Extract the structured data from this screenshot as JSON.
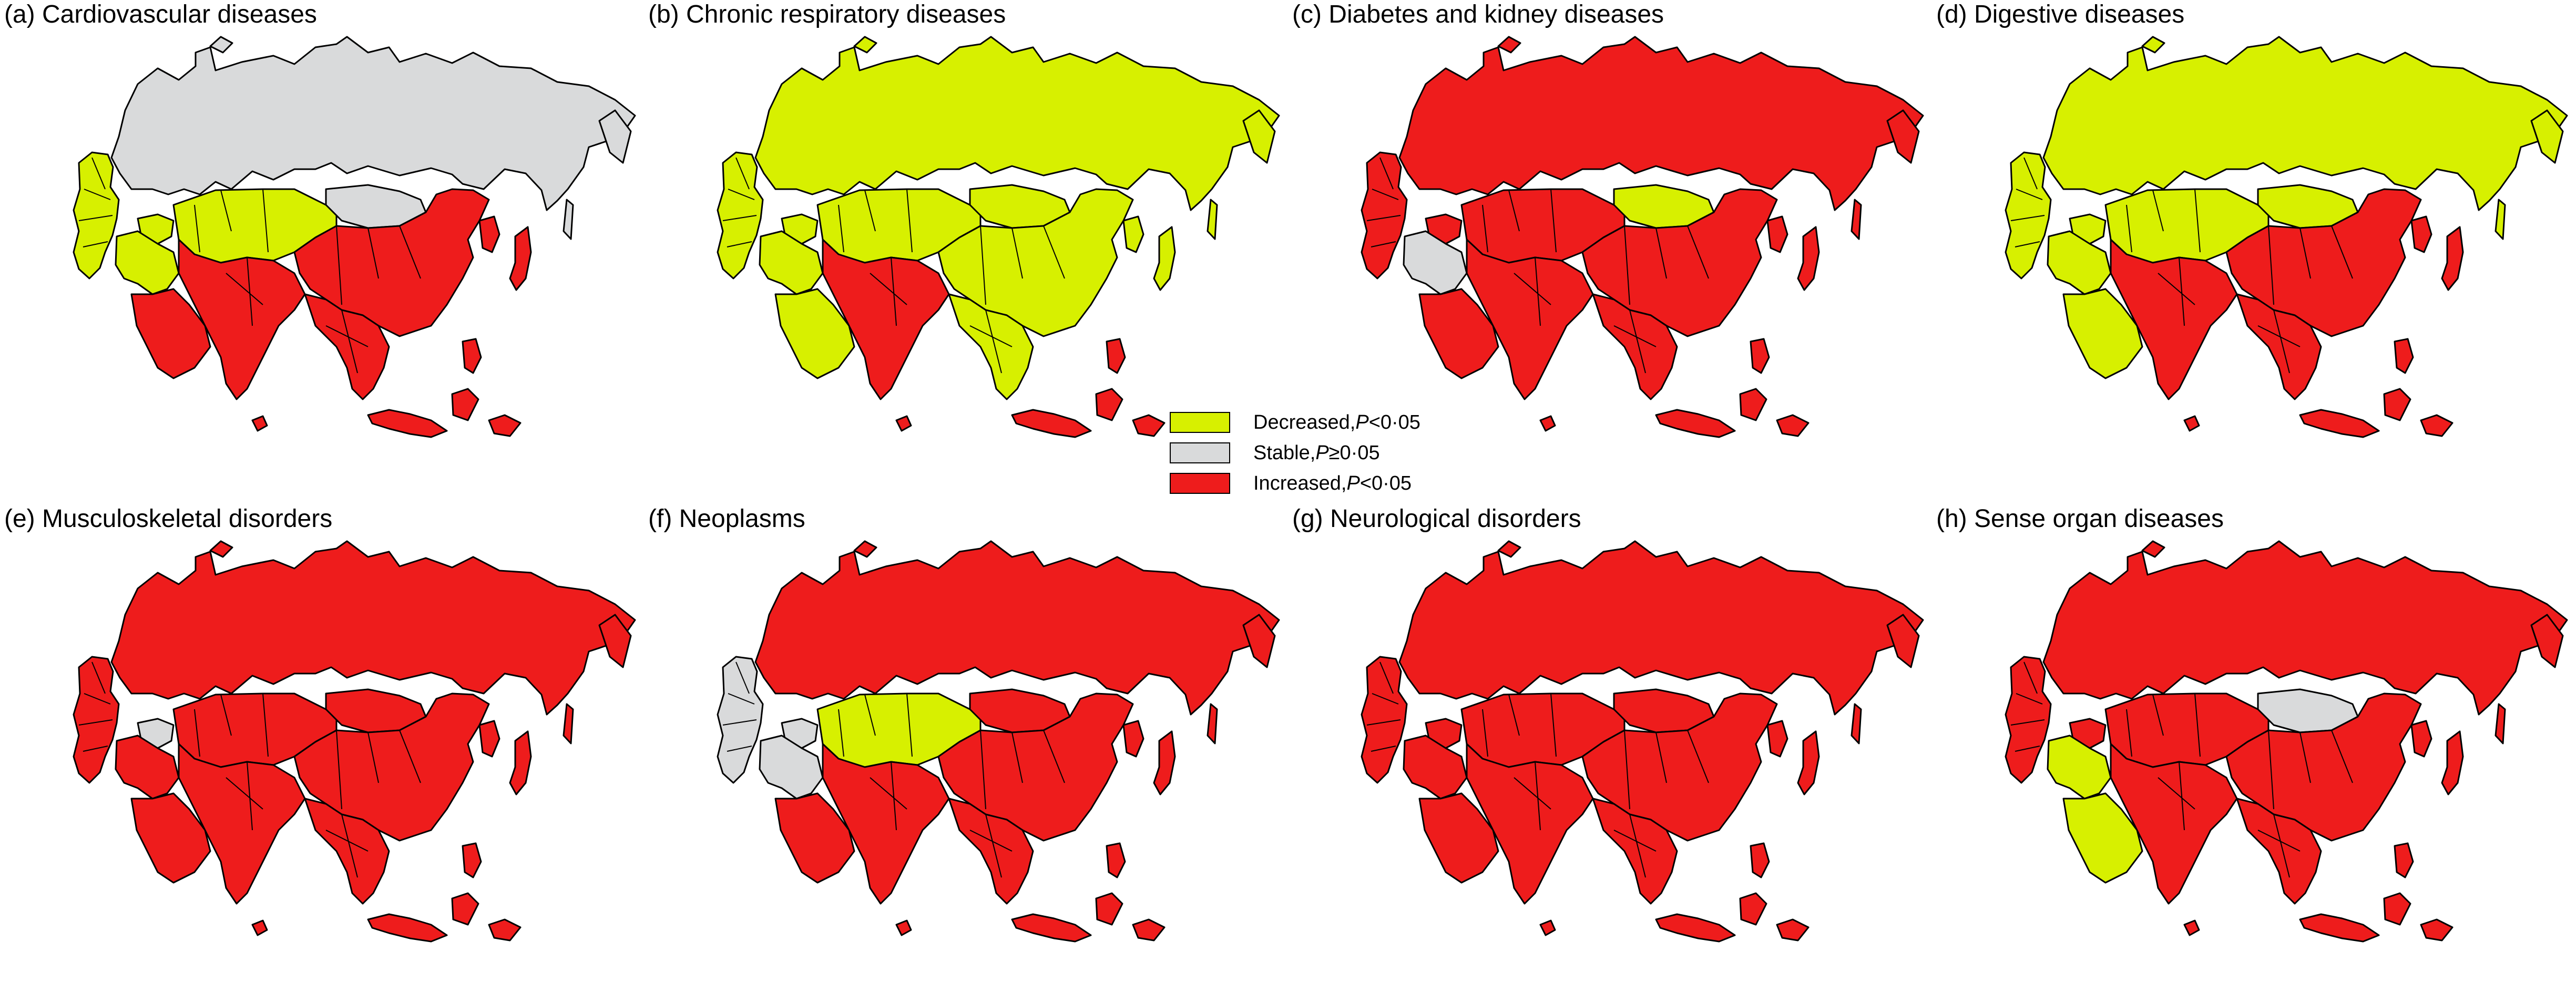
{
  "legend": {
    "items": [
      {
        "key": "decreased",
        "label_prefix": "Decreased,",
        "stat": "P",
        "label_suffix": "<0·05",
        "color": "#d7f000"
      },
      {
        "key": "stable",
        "label_prefix": "Stable,",
        "stat": "P",
        "label_suffix": "≥0·05",
        "color": "#d9dadb"
      },
      {
        "key": "increased",
        "label_prefix": "Increased,",
        "stat": "P",
        "label_suffix": "<0·05",
        "color": "#ee1c1c"
      }
    ]
  },
  "panels": [
    {
      "title": "(a) Cardiovascular diseases",
      "regions": {
        "russia": "stable",
        "northwest": "decreased",
        "mideast": "decreased",
        "caucasus": "decreased",
        "central_asia": "decreased",
        "mongolia": "stable",
        "china": "increased",
        "south_asia": "increased",
        "se_asia": "increased",
        "arabia": "increased",
        "islands": "increased"
      }
    },
    {
      "title": "(b) Chronic respiratory diseases",
      "regions": {
        "russia": "decreased",
        "northwest": "decreased",
        "mideast": "decreased",
        "caucasus": "decreased",
        "central_asia": "decreased",
        "mongolia": "decreased",
        "china": "decreased",
        "south_asia": "increased",
        "se_asia": "decreased",
        "arabia": "decreased",
        "islands": "increased"
      }
    },
    {
      "title": "(c) Diabetes and kidney diseases",
      "regions": {
        "russia": "increased",
        "northwest": "increased",
        "mideast": "stable",
        "caucasus": "increased",
        "central_asia": "increased",
        "mongolia": "decreased",
        "china": "increased",
        "south_asia": "increased",
        "se_asia": "increased",
        "arabia": "increased",
        "islands": "increased"
      }
    },
    {
      "title": "(d) Digestive diseases",
      "regions": {
        "russia": "decreased",
        "northwest": "decreased",
        "mideast": "decreased",
        "caucasus": "decreased",
        "central_asia": "decreased",
        "mongolia": "decreased",
        "china": "increased",
        "south_asia": "increased",
        "se_asia": "increased",
        "arabia": "decreased",
        "islands": "increased"
      }
    },
    {
      "title": "(e) Musculoskeletal disorders",
      "regions": {
        "russia": "increased",
        "northwest": "increased",
        "mideast": "increased",
        "caucasus": "stable",
        "central_asia": "increased",
        "mongolia": "increased",
        "china": "increased",
        "south_asia": "increased",
        "se_asia": "increased",
        "arabia": "increased",
        "islands": "increased"
      }
    },
    {
      "title": "(f) Neoplasms",
      "regions": {
        "russia": "increased",
        "northwest": "stable",
        "mideast": "stable",
        "caucasus": "stable",
        "central_asia": "decreased",
        "mongolia": "increased",
        "china": "increased",
        "south_asia": "increased",
        "se_asia": "increased",
        "arabia": "increased",
        "islands": "increased"
      }
    },
    {
      "title": "(g) Neurological disorders",
      "regions": {
        "russia": "increased",
        "northwest": "increased",
        "mideast": "increased",
        "caucasus": "increased",
        "central_asia": "increased",
        "mongolia": "increased",
        "china": "increased",
        "south_asia": "increased",
        "se_asia": "increased",
        "arabia": "increased",
        "islands": "increased"
      }
    },
    {
      "title": "(h) Sense organ diseases",
      "regions": {
        "russia": "increased",
        "northwest": "increased",
        "mideast": "decreased",
        "caucasus": "increased",
        "central_asia": "increased",
        "mongolia": "stable",
        "china": "increased",
        "south_asia": "increased",
        "se_asia": "increased",
        "arabia": "decreased",
        "islands": "increased"
      }
    }
  ]
}
